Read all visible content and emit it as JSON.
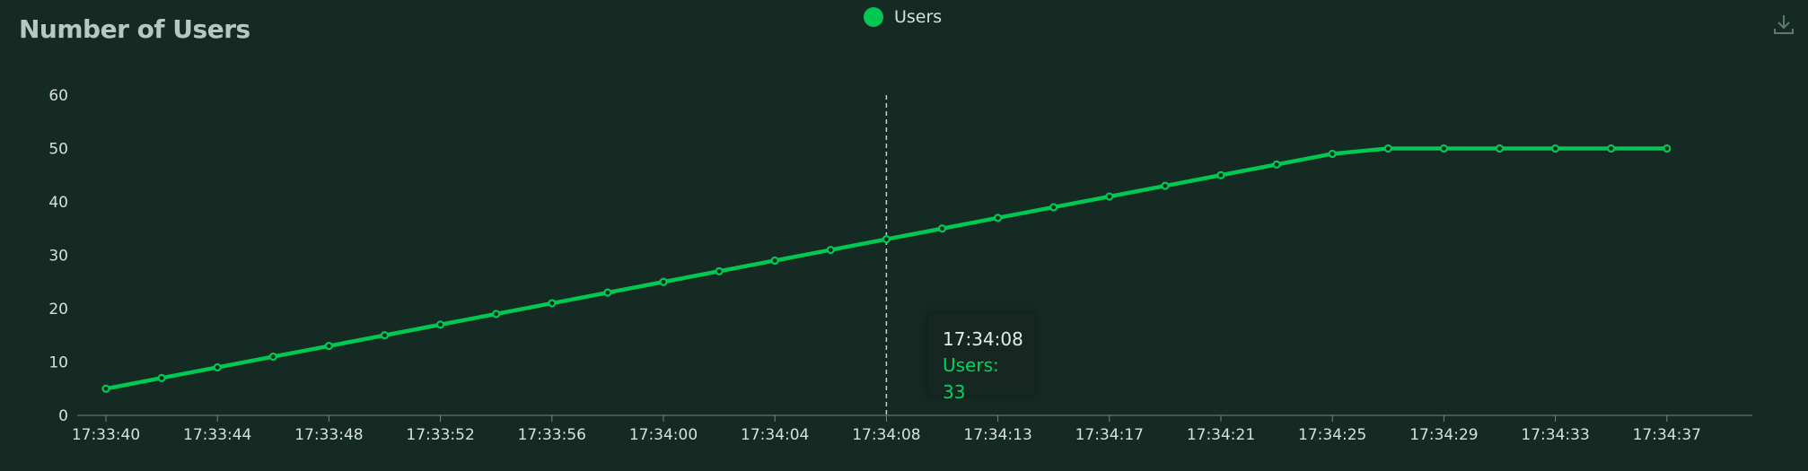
{
  "title": "Number of Users",
  "legend": {
    "label": "Users",
    "color": "#00c853"
  },
  "toolbar": {
    "download_icon": "download-icon"
  },
  "tooltip": {
    "time": "17:34:08",
    "label": "Users: 33"
  },
  "chart_data": {
    "type": "line",
    "title": "Number of Users",
    "xlabel": "",
    "ylabel": "",
    "ylim": [
      0,
      60
    ],
    "yticks": [
      0,
      10,
      20,
      30,
      40,
      50,
      60
    ],
    "x": [
      "17:33:40",
      "17:33:42",
      "17:33:44",
      "17:33:46",
      "17:33:48",
      "17:33:50",
      "17:33:52",
      "17:33:54",
      "17:33:56",
      "17:33:58",
      "17:34:00",
      "17:34:02",
      "17:34:04",
      "17:34:06",
      "17:34:08",
      "17:34:11",
      "17:34:13",
      "17:34:15",
      "17:34:17",
      "17:34:19",
      "17:34:21",
      "17:34:23",
      "17:34:25",
      "17:34:27",
      "17:34:29",
      "17:34:31",
      "17:34:33",
      "17:34:35",
      "17:34:37"
    ],
    "xtick_labels": [
      "17:33:40",
      "17:33:44",
      "17:33:48",
      "17:33:52",
      "17:33:56",
      "17:34:00",
      "17:34:04",
      "17:34:08",
      "17:34:13",
      "17:34:17",
      "17:34:21",
      "17:34:25",
      "17:34:29",
      "17:34:33",
      "17:34:37"
    ],
    "series": [
      {
        "name": "Users",
        "color": "#00c853",
        "values": [
          5,
          7,
          9,
          11,
          13,
          15,
          17,
          19,
          21,
          23,
          25,
          27,
          29,
          31,
          33,
          35,
          37,
          39,
          41,
          43,
          45,
          47,
          49,
          50,
          50,
          50,
          50,
          50,
          50
        ]
      }
    ],
    "hover_index": 14,
    "grid": false,
    "legend_position": "top-center"
  }
}
